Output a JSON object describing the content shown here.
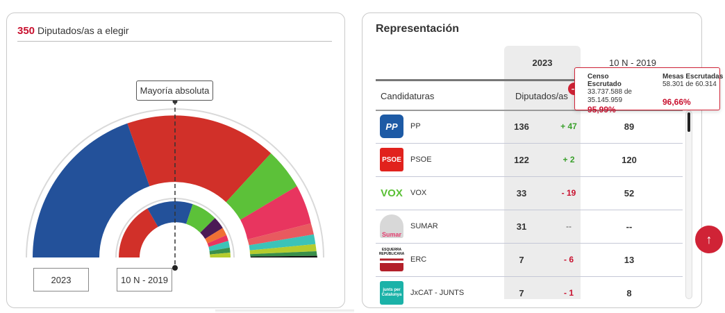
{
  "left": {
    "seats_total": "350",
    "seats_label": "Diputados/as a elegir",
    "majority_label": "Mayoría absoluta",
    "btn_2023": "2023",
    "btn_2019": "10 N - 2019"
  },
  "right": {
    "title": "Representación",
    "col_2023": "2023",
    "col_2019": "10 N - 2019",
    "hdr_candidaturas": "Candidaturas",
    "hdr_diputados": "Diputados/as",
    "rows": [
      {
        "logo": "PP",
        "name": "PP",
        "seats": "136",
        "diff": "+ 47",
        "prev": "89",
        "color": "#1d5aa5"
      },
      {
        "logo": "PSOE",
        "name": "PSOE",
        "seats": "122",
        "diff": "+ 2",
        "prev": "120",
        "color": "#e1221d"
      },
      {
        "logo": "VOX",
        "name": "VOX",
        "seats": "33",
        "diff": "- 19",
        "prev": "52",
        "color": "#5ac035"
      },
      {
        "logo": "Sumar",
        "name": "SUMAR",
        "seats": "31",
        "diff": "--",
        "prev": "--",
        "color": "#e43c6e"
      },
      {
        "logo": "ESQUERRA REPUBLICANA",
        "name": "ERC",
        "seats": "7",
        "diff": "- 6",
        "prev": "13",
        "color": "#f3b13a"
      },
      {
        "logo": "junts per Catalunya",
        "name": "JxCAT - JUNTS",
        "seats": "7",
        "diff": "- 1",
        "prev": "8",
        "color": "#1bb2a8"
      }
    ]
  },
  "tooltip": {
    "censo_label": "Censo Escrutado",
    "censo_value": "33.737.588 de 35.145.959",
    "censo_pct": "95,99%",
    "mesas_label": "Mesas Escrutadas",
    "mesas_value": "58.301 de 60.314",
    "mesas_pct": "96,66%"
  },
  "icons": {
    "tooltip_arrow": "arrow-right-icon",
    "scroll_top": "arrow-up-icon"
  },
  "colors": {
    "accent": "#c8102e",
    "pp": "#23519a",
    "psoe": "#d13029",
    "vox": "#5cc139",
    "sumar": "#e8355f"
  }
}
